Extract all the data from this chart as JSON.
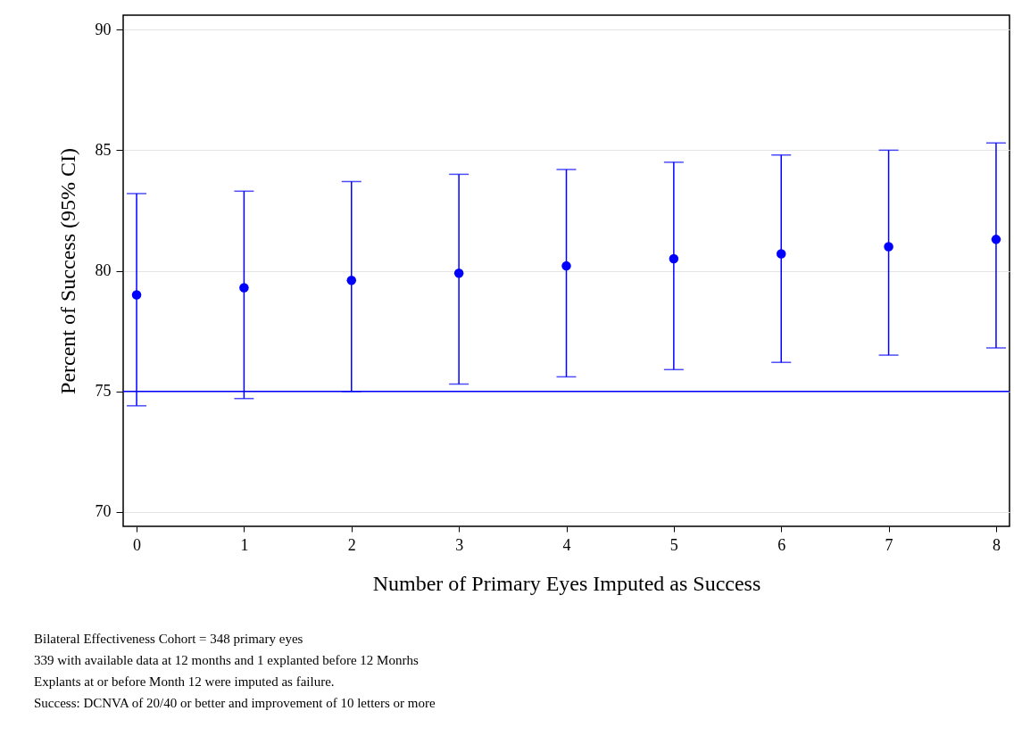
{
  "chart_data": {
    "type": "scatter",
    "xlabel": "Number of Primary Eyes Imputed as Success",
    "ylabel": "Percent of Success (95% CI)",
    "x": [
      0,
      1,
      2,
      3,
      4,
      5,
      6,
      7,
      8
    ],
    "series": [
      {
        "color": "#0000ff",
        "values": [
          79.0,
          79.3,
          79.6,
          79.9,
          80.2,
          80.5,
          80.7,
          81.0,
          81.3
        ],
        "errors": [
          [
            74.4,
            83.2
          ],
          [
            74.7,
            83.3
          ],
          [
            75.0,
            83.7
          ],
          [
            75.3,
            84.0
          ],
          [
            75.6,
            84.2
          ],
          [
            75.9,
            84.5
          ],
          [
            76.2,
            84.8
          ],
          [
            76.5,
            85.0
          ],
          [
            76.8,
            85.3
          ]
        ]
      }
    ],
    "xlim": [
      -0.125,
      8.125
    ],
    "xticks": [
      0,
      1,
      2,
      3,
      4,
      5,
      6,
      7,
      8
    ],
    "ylim": [
      69.4,
      90.6
    ],
    "yticks": [
      70,
      75,
      80,
      85,
      90
    ],
    "grid": "y",
    "marker": "circle",
    "ref_lines": [
      {
        "axis": "y",
        "value": 75,
        "color": "#0000ff"
      }
    ],
    "annotations": [
      "Bilateral Effectiveness Cohort = 348 primary eyes",
      "339 with available data at 12 months and 1 explanted before 12 Monrhs",
      "Explants at or before Month 12 were imputed as failure.",
      "Success: DCNVA of 20/40 or better and improvement of 10 letters or more"
    ]
  }
}
